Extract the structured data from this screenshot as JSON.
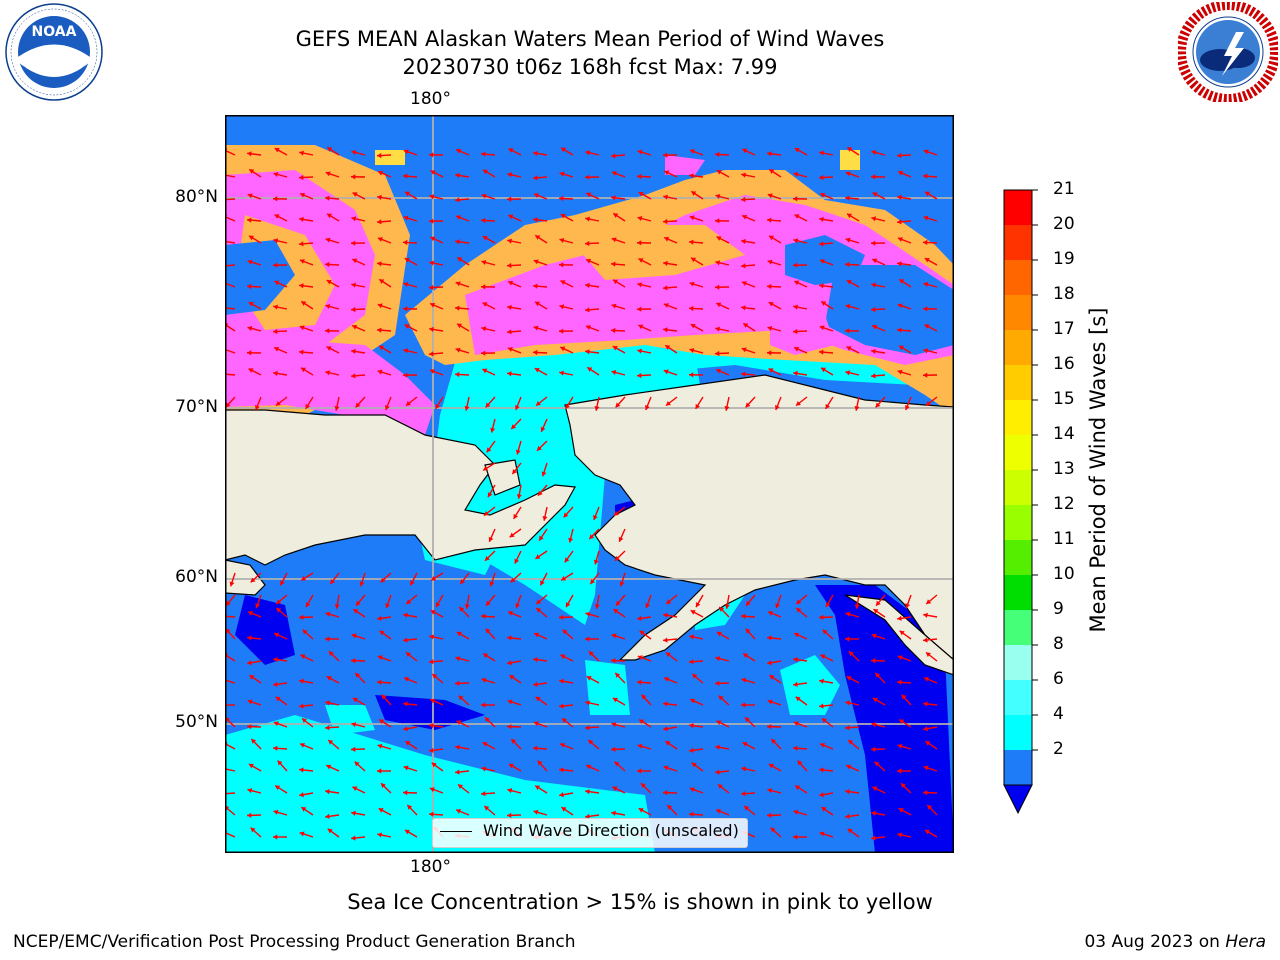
{
  "header": {
    "title_line1": "GEFS MEAN Alaskan Waters Mean Period of Wind Waves",
    "title_line2": "20230730 t06z 168h fcst   Max: 7.99"
  },
  "logos": {
    "noaa": {
      "text": "NOAA",
      "ring_text": "NATIONAL OCEANIC AND ATMOSPHERIC ADMINISTRATION · U.S. DEPARTMENT OF COMMERCE"
    },
    "nws": {
      "ring_text": "NATIONAL WEATHER SERVICE"
    }
  },
  "map": {
    "lon_label_top": "180°",
    "lon_label_bottom": "180°",
    "lat_labels": [
      "80°N",
      "70°N",
      "60°N",
      "50°N"
    ],
    "legend_label": "Wind Wave Direction (unscaled)",
    "colors": {
      "land": "#efedde",
      "ocean_2_4": "#1f7cf8",
      "ocean_4_6": "#00ffff",
      "ocean_under_2": "#0000f0",
      "ice_pink": "#ff66ff",
      "ice_orange": "#ffb84d",
      "ice_yellow": "#ffdd44",
      "arrow": "#ff0000",
      "grid": "#b0b0b0"
    }
  },
  "colorbar": {
    "label": "Mean Period of Wind Waves [s]",
    "ticks": [
      "21",
      "20",
      "19",
      "18",
      "17",
      "16",
      "15",
      "14",
      "13",
      "12",
      "11",
      "10",
      "9",
      "8",
      "6",
      "4",
      "2"
    ],
    "colors": [
      "#ff0000",
      "#ff3300",
      "#ff6600",
      "#ff8800",
      "#ffaa00",
      "#ffcc00",
      "#ffee00",
      "#eeff00",
      "#ccff00",
      "#99ff00",
      "#55ee00",
      "#00dd00",
      "#44ff77",
      "#99ffee",
      "#44ffff",
      "#00ffff",
      "#1f7cf8"
    ],
    "extend_color": "#0000f0"
  },
  "notes": {
    "sea_ice": "Sea Ice Concentration > 15% is shown in pink to yellow"
  },
  "footer": {
    "left": "NCEP/EMC/Verification Post Processing Product Generation Branch",
    "right_prefix": "03 Aug 2023 on ",
    "right_host": "Hera"
  }
}
